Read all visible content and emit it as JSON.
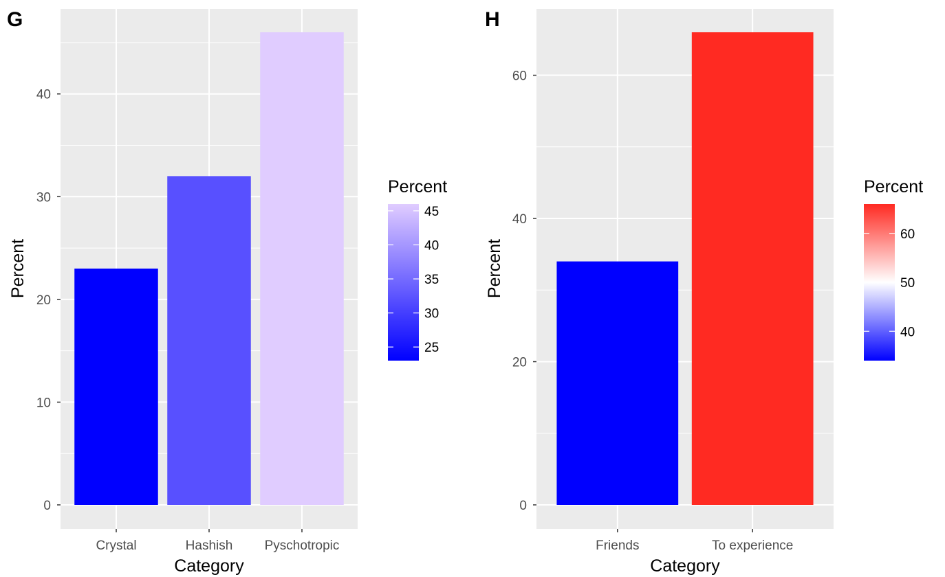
{
  "chart_data": [
    {
      "tag": "G",
      "type": "bar",
      "categories": [
        "Crystal",
        "Hashish",
        "Pyschotropic"
      ],
      "values": [
        23,
        32,
        46
      ],
      "xlabel": "Category",
      "ylabel": "Percent",
      "ylim": [
        0,
        46
      ],
      "yticks": [
        0,
        10,
        20,
        30,
        40
      ],
      "grid": true,
      "legend": {
        "title": "Percent",
        "position": "right",
        "ticks": [
          25,
          30,
          35,
          40,
          45
        ],
        "range": [
          23,
          46
        ],
        "colors": {
          "low": "#0000FF",
          "high": "#E0CCFF"
        }
      }
    },
    {
      "tag": "H",
      "type": "bar",
      "categories": [
        "Friends",
        "To experience"
      ],
      "values": [
        34,
        66
      ],
      "xlabel": "Category",
      "ylabel": "Percent",
      "ylim": [
        0,
        66
      ],
      "yticks": [
        0,
        20,
        40,
        60
      ],
      "grid": true,
      "legend": {
        "title": "Percent",
        "position": "right",
        "ticks": [
          40,
          50,
          60
        ],
        "range": [
          34,
          66
        ],
        "colors": {
          "low": "#0000FF",
          "mid": "#FFFFFF",
          "high": "#FF2A22",
          "midpoint": 50
        }
      }
    }
  ]
}
